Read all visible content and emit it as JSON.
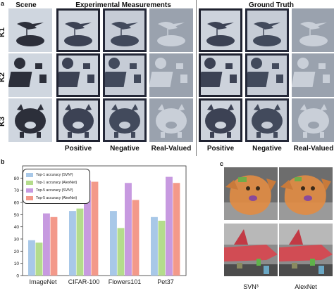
{
  "panel_letters": {
    "a": "a",
    "b": "b",
    "c": "c"
  },
  "panel_a": {
    "headers": {
      "scene": "Scene",
      "experimental": "Experimental Measurements",
      "ground_truth": "Ground Truth"
    },
    "row_labels": [
      "K1",
      "K2",
      "K3"
    ],
    "column_labels": [
      "Positive",
      "Negative",
      "Real-Valued",
      "Positive",
      "Negative",
      "Real-Valued"
    ]
  },
  "panel_b": {
    "legend": [
      "Top-1 accuracy (SVN³)",
      "Top-1 accuracy (AlexNet)",
      "Top-5 accuracy (SVN³)",
      "Top-5 accuracy (AlexNet)"
    ],
    "colors": [
      "#a8c8e8",
      "#b4dc8c",
      "#c79ae0",
      "#f3998a"
    ]
  },
  "chart_data": {
    "type": "bar",
    "categories": [
      "ImageNet",
      "CIFAR-100",
      "Flowers101",
      "Pet37"
    ],
    "series": [
      {
        "name": "Top-1 accuracy (SVN³)",
        "values": [
          29,
          53,
          53,
          48
        ]
      },
      {
        "name": "Top-1 accuracy (AlexNet)",
        "values": [
          27,
          55,
          39,
          45
        ]
      },
      {
        "name": "Top-5 accuracy (SVN³)",
        "values": [
          51,
          78,
          76,
          81
        ]
      },
      {
        "name": "Top-5 accuracy (AlexNet)",
        "values": [
          48,
          77,
          62,
          76
        ]
      }
    ],
    "yticks": [
      0,
      10,
      20,
      30,
      40,
      50,
      60,
      70,
      80
    ],
    "ylim": [
      0,
      90
    ],
    "xlabel": "",
    "ylabel": ""
  },
  "panel_c": {
    "column_labels": [
      "SVN³",
      "AlexNet"
    ]
  }
}
